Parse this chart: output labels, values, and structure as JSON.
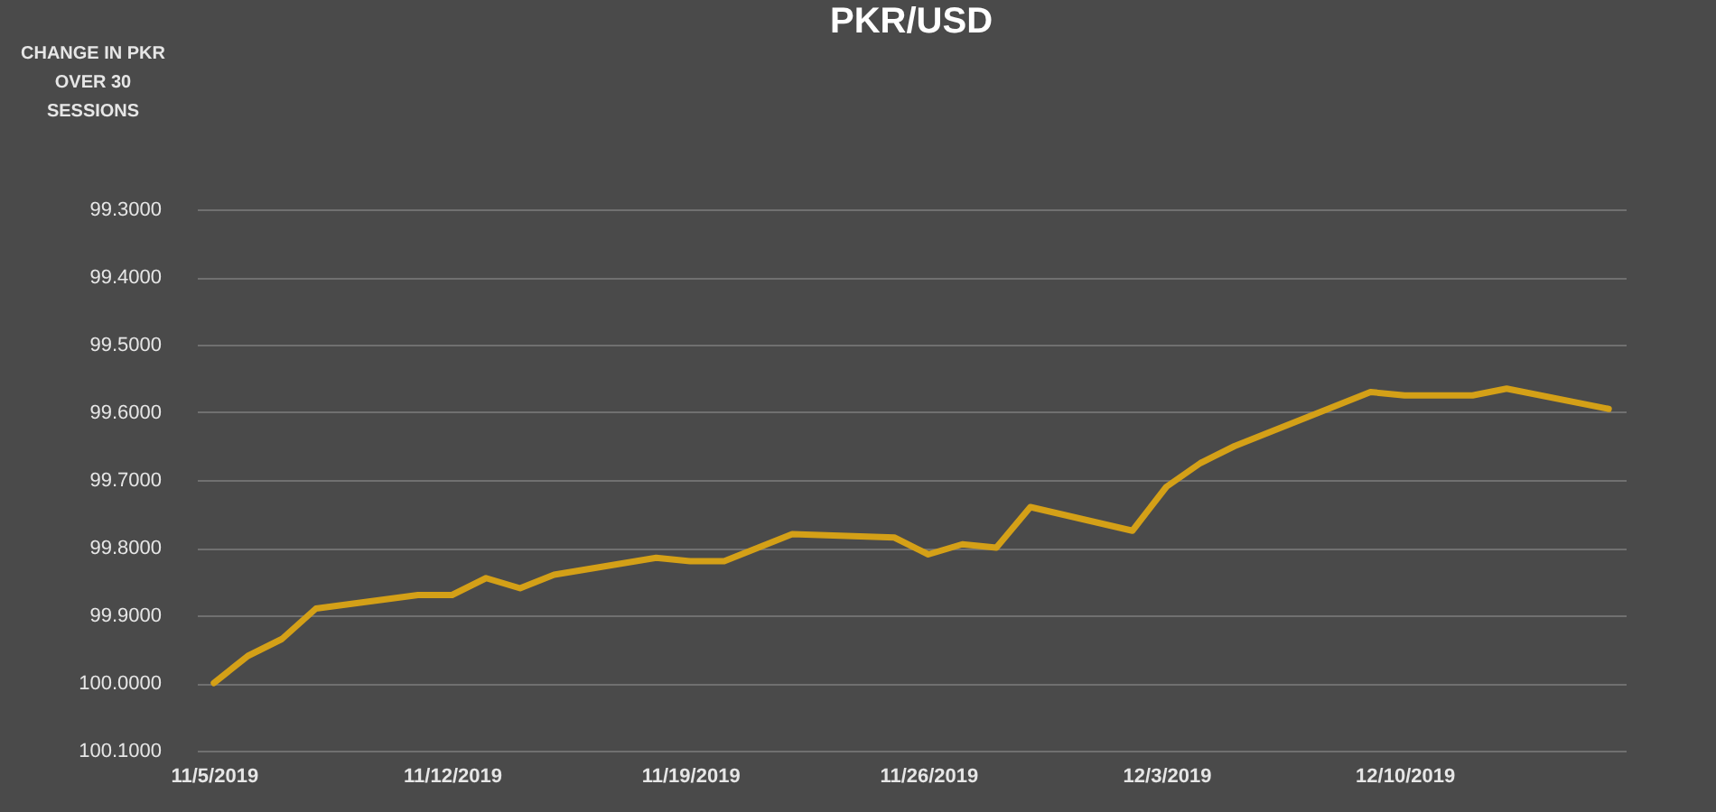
{
  "chart_data": {
    "type": "line",
    "title": "PKR/USD",
    "ylabel": "CHANGE IN PKR OVER 30 SESSIONS",
    "x": [
      "2019-11-05",
      "2019-11-06",
      "2019-11-07",
      "2019-11-08",
      "2019-11-11",
      "2019-11-12",
      "2019-11-13",
      "2019-11-14",
      "2019-11-15",
      "2019-11-18",
      "2019-11-19",
      "2019-11-20",
      "2019-11-21",
      "2019-11-22",
      "2019-11-25",
      "2019-11-26",
      "2019-11-27",
      "2019-11-28",
      "2019-11-29",
      "2019-12-02",
      "2019-12-03",
      "2019-12-04",
      "2019-12-05",
      "2019-12-06",
      "2019-12-09",
      "2019-12-10",
      "2019-12-11",
      "2019-12-12",
      "2019-12-13",
      "2019-12-16"
    ],
    "series": [
      {
        "color": "#d4a017",
        "values": [
          100.0,
          99.96,
          99.935,
          99.89,
          99.87,
          99.87,
          99.845,
          99.86,
          99.84,
          99.815,
          99.82,
          99.82,
          99.8,
          99.78,
          99.785,
          99.81,
          99.795,
          99.8,
          99.74,
          99.775,
          99.71,
          99.675,
          99.65,
          99.63,
          99.57,
          99.575,
          99.575,
          99.575,
          99.565,
          99.595
        ]
      }
    ],
    "xlim": [
      "2019-11-04T12:00",
      "2019-12-16T12:00"
    ],
    "xticks": [
      {
        "value": "2019-11-05",
        "label": "11/5/2019"
      },
      {
        "value": "2019-11-12",
        "label": "11/12/2019"
      },
      {
        "value": "2019-11-19",
        "label": "11/19/2019"
      },
      {
        "value": "2019-11-26",
        "label": "11/26/2019"
      },
      {
        "value": "2019-12-03",
        "label": "12/3/2019"
      },
      {
        "value": "2019-12-10",
        "label": "12/10/2019"
      }
    ],
    "ylim": [
      100.1,
      99.3
    ],
    "yticks": [
      {
        "value": 99.3,
        "label": "99.3000"
      },
      {
        "value": 99.4,
        "label": "99.4000"
      },
      {
        "value": 99.5,
        "label": "99.5000"
      },
      {
        "value": 99.6,
        "label": "99.6000"
      },
      {
        "value": 99.7,
        "label": "99.7000"
      },
      {
        "value": 99.8,
        "label": "99.8000"
      },
      {
        "value": 99.9,
        "label": "99.9000"
      },
      {
        "value": 100.0,
        "label": "100.0000"
      },
      {
        "value": 100.1,
        "label": "100.1000"
      }
    ],
    "grid": "y",
    "marker": "none",
    "line_style": "solid"
  }
}
